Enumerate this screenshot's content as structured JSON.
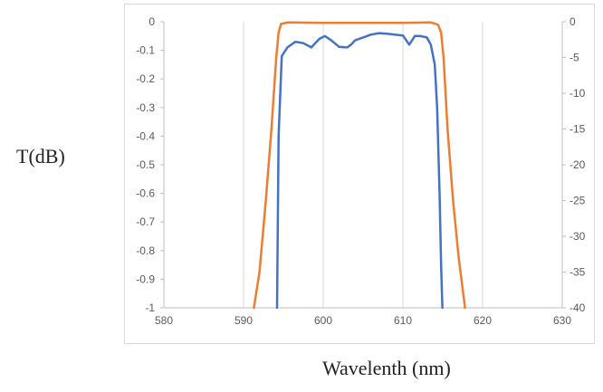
{
  "chart_data": {
    "type": "line",
    "xlabel": "Wavelenth (nm)",
    "ylabel": "T(dB)",
    "xlim": [
      580,
      630
    ],
    "ylim_left": [
      -1,
      0
    ],
    "ylim_right": [
      -40,
      0
    ],
    "x_ticks": [
      "580",
      "590",
      "600",
      "610",
      "620",
      "630"
    ],
    "y_ticks_left": [
      "0",
      "-0.1",
      "-0.2",
      "-0.3",
      "-0.4",
      "-0.5",
      "-0.6",
      "-0.7",
      "-0.8",
      "-0.9",
      "-1"
    ],
    "y_ticks_right": [
      "0",
      "-5",
      "-10",
      "-15",
      "-20",
      "-25",
      "-30",
      "-35",
      "-40"
    ],
    "grid": "vertical",
    "series": [
      {
        "axis": "left",
        "color": "#4472C4",
        "x": [
          594.2,
          594.4,
          594.8,
          595.5,
          596.5,
          597.5,
          598.5,
          599.5,
          600.2,
          601,
          602,
          603,
          603.5,
          604,
          605,
          606,
          607,
          608,
          609,
          610,
          610.8,
          611.5,
          612.2,
          613,
          613.5,
          614,
          614.3,
          614.6,
          614.8,
          614.95
        ],
        "y": [
          -1,
          -0.4,
          -0.12,
          -0.09,
          -0.07,
          -0.075,
          -0.09,
          -0.06,
          -0.05,
          -0.065,
          -0.088,
          -0.09,
          -0.08,
          -0.065,
          -0.055,
          -0.045,
          -0.04,
          -0.042,
          -0.045,
          -0.048,
          -0.08,
          -0.05,
          -0.05,
          -0.055,
          -0.08,
          -0.15,
          -0.3,
          -0.6,
          -0.85,
          -1
        ]
      },
      {
        "axis": "right",
        "color": "#ED7D31",
        "x": [
          591.3,
          592,
          592.8,
          593.5,
          594.1,
          594.4,
          594.7,
          595.5,
          600,
          605,
          610,
          613.5,
          614.4,
          614.8,
          615.1,
          615.6,
          616.3,
          617,
          617.8
        ],
        "y": [
          -40,
          -35,
          -25,
          -15,
          -5,
          -1.5,
          -0.3,
          -0.1,
          -0.15,
          -0.15,
          -0.15,
          -0.1,
          -0.4,
          -1.5,
          -5,
          -15,
          -25,
          -33,
          -40
        ]
      }
    ]
  }
}
